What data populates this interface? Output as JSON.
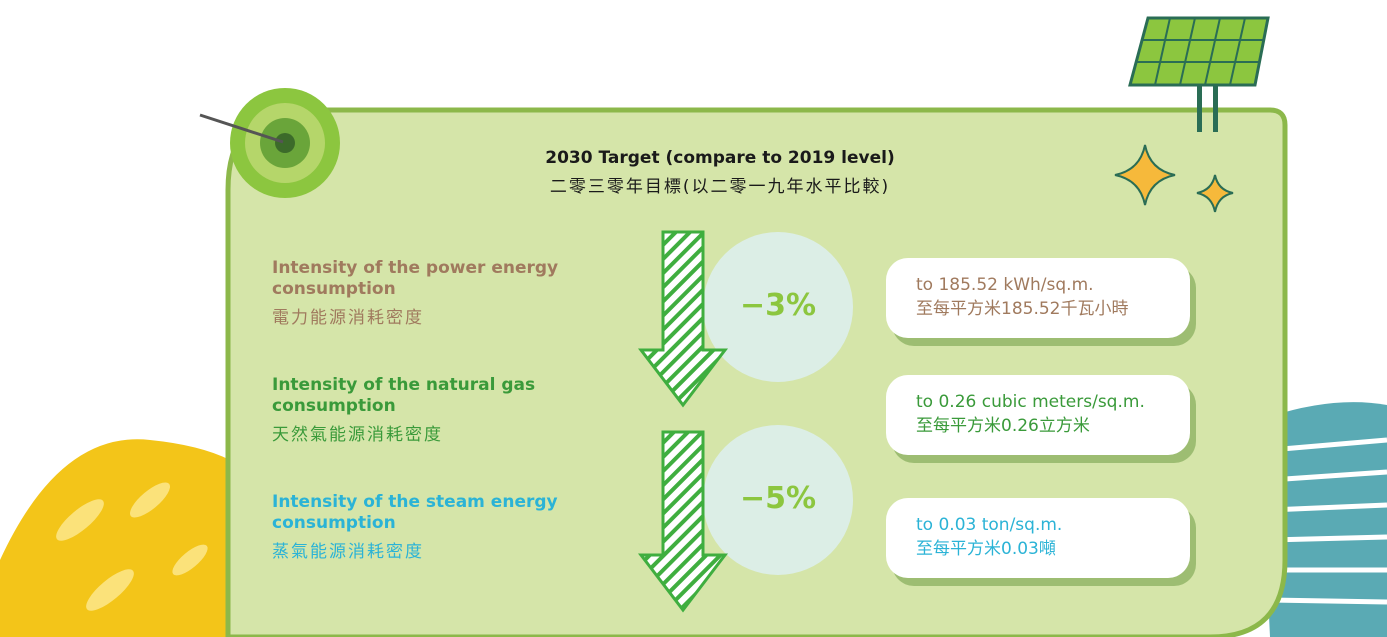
{
  "header": {
    "title": "2030 Target (compare to 2019 level)",
    "subtitle": "二零三零年目標(以二零一九年水平比較)"
  },
  "items": [
    {
      "label": "Intensity of the power energy consumption",
      "label_zh": "電力能源消耗密度",
      "target": "to 185.52 kWh/sq.m.",
      "target_zh": "至每平方米185.52千瓦小時"
    },
    {
      "label": "Intensity of the natural gas consumption",
      "label_zh": "天然氣能源消耗密度",
      "target": "to 0.26 cubic meters/sq.m.",
      "target_zh": "至每平方米0.26立方米"
    },
    {
      "label": "Intensity of the steam energy consumption",
      "label_zh": "蒸氣能源消耗密度",
      "target": "to 0.03 ton/sq.m.",
      "target_zh": "至每平方米0.03噸"
    }
  ],
  "reductions": [
    "−3%",
    "−5%"
  ]
}
